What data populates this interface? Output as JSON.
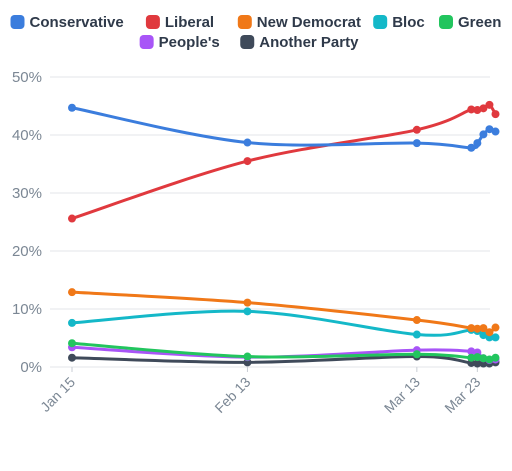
{
  "chart_data": {
    "type": "line",
    "title": "",
    "xlabel": "",
    "ylabel": "",
    "ylim": [
      0,
      50
    ],
    "yticks": [
      0,
      10,
      20,
      30,
      40,
      50
    ],
    "ytick_labels": [
      "0%",
      "10%",
      "20%",
      "30%",
      "40%",
      "50%"
    ],
    "xticks": [
      "2025-01-15",
      "2025-02-13",
      "2025-03-13",
      "2025-03-23"
    ],
    "xtick_labels": [
      "Jan 15",
      "Feb 13",
      "Mar 13",
      "Mar 23"
    ],
    "xrange": [
      "2025-01-15",
      "2025-03-27"
    ],
    "grid": true,
    "legend": "top",
    "series": [
      {
        "name": "Conservative",
        "color": "#3b7ddd",
        "x": [
          "2025-01-15",
          "2025-02-13",
          "2025-03-13",
          "2025-03-22",
          "2025-03-23",
          "2025-03-24",
          "2025-03-25",
          "2025-03-26"
        ],
        "y": [
          44.7,
          38.7,
          38.6,
          37.8,
          38.6,
          40.1,
          41.0,
          40.6
        ]
      },
      {
        "name": "Liberal",
        "color": "#e0393e",
        "x": [
          "2025-01-15",
          "2025-02-13",
          "2025-03-13",
          "2025-03-22",
          "2025-03-23",
          "2025-03-24",
          "2025-03-25",
          "2025-03-26"
        ],
        "y": [
          25.6,
          35.5,
          40.9,
          44.4,
          44.3,
          44.6,
          45.2,
          43.6
        ]
      },
      {
        "name": "New Democrat",
        "color": "#f07818",
        "x": [
          "2025-01-15",
          "2025-02-13",
          "2025-03-13",
          "2025-03-22",
          "2025-03-23",
          "2025-03-24",
          "2025-03-25",
          "2025-03-26"
        ],
        "y": [
          12.9,
          11.1,
          8.1,
          6.7,
          6.6,
          6.7,
          6.0,
          6.8
        ]
      },
      {
        "name": "Bloc",
        "color": "#14b8c8",
        "x": [
          "2025-01-15",
          "2025-02-13",
          "2025-03-13",
          "2025-03-22",
          "2025-03-23",
          "2025-03-24",
          "2025-03-25",
          "2025-03-26"
        ],
        "y": [
          7.6,
          9.6,
          5.6,
          6.4,
          6.2,
          5.5,
          5.1,
          5.1
        ]
      },
      {
        "name": "Green",
        "color": "#22c55e",
        "x": [
          "2025-01-15",
          "2025-02-13",
          "2025-03-13",
          "2025-03-22",
          "2025-03-23",
          "2025-03-24",
          "2025-03-25",
          "2025-03-26"
        ],
        "y": [
          4.1,
          1.8,
          2.2,
          1.6,
          1.7,
          1.5,
          1.3,
          1.6
        ]
      },
      {
        "name": "People's",
        "color": "#a855f7",
        "x": [
          "2025-01-15",
          "2025-02-13",
          "2025-03-13",
          "2025-03-22",
          "2025-03-23",
          "2025-03-24",
          "2025-03-25",
          "2025-03-26"
        ],
        "y": [
          3.4,
          1.7,
          2.9,
          2.7,
          2.5,
          1.5,
          1.2,
          1.3
        ]
      },
      {
        "name": "Another Party",
        "color": "#3f4a5a",
        "x": [
          "2025-01-15",
          "2025-02-13",
          "2025-03-13",
          "2025-03-22",
          "2025-03-23",
          "2025-03-24",
          "2025-03-25",
          "2025-03-26"
        ],
        "y": [
          1.6,
          0.8,
          1.8,
          0.7,
          0.6,
          0.6,
          0.6,
          0.8
        ]
      }
    ]
  }
}
